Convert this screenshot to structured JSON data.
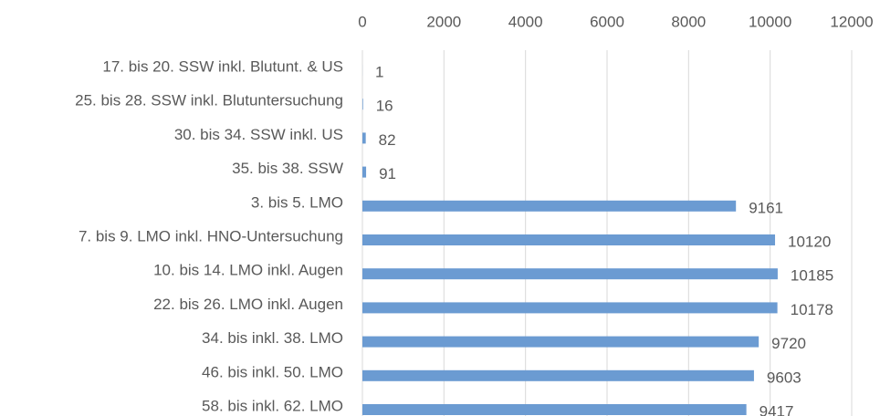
{
  "chart_data": {
    "type": "bar",
    "orientation": "horizontal",
    "categories": [
      "17. bis 20. SSW inkl. Blutunt. & US",
      "25. bis 28. SSW inkl. Blutuntersuchung",
      "30. bis 34. SSW inkl. US",
      "35. bis 38. SSW",
      "3. bis 5. LMO",
      "7. bis 9. LMO inkl. HNO-Untersuchung",
      "10. bis 14. LMO inkl. Augen",
      "22. bis 26. LMO inkl. Augen",
      "34. bis inkl. 38. LMO",
      "46. bis inkl. 50. LMO",
      "58. bis inkl. 62. LMO"
    ],
    "values": [
      1,
      16,
      82,
      91,
      9161,
      10120,
      10185,
      10178,
      9720,
      9603,
      9417
    ],
    "color": "#6b9bd2",
    "xlim": [
      0,
      12000
    ],
    "xticks": [
      0,
      2000,
      4000,
      6000,
      8000,
      10000,
      12000
    ],
    "grid": true
  }
}
